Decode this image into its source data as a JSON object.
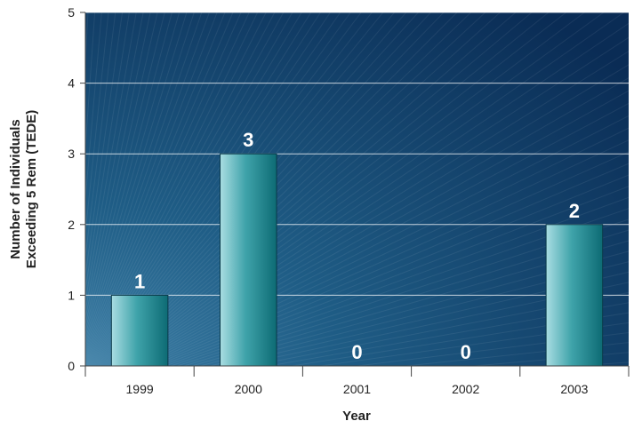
{
  "chart_data": {
    "type": "bar",
    "categories": [
      "1999",
      "2000",
      "2001",
      "2002",
      "2003"
    ],
    "values": [
      1,
      3,
      0,
      0,
      2
    ],
    "data_labels": [
      "1",
      "3",
      "0",
      "0",
      "2"
    ],
    "title": "",
    "xlabel": "Year",
    "ylabel": [
      "Number of Individuals",
      "Exceeding 5 Rem (TEDE)"
    ],
    "ylim": [
      0,
      5
    ],
    "yticks": [
      "0",
      "1",
      "2",
      "3",
      "4",
      "5"
    ],
    "grid": true,
    "legend": "none",
    "colors": {
      "background_light": "#1f5d86",
      "background_dark": "#0a2c55",
      "bar_light": "#a9dde2",
      "bar_mid": "#3fa3aa",
      "bar_dark": "#0d6b74",
      "gridline": "#ffffff",
      "data_label": "#ffffff"
    }
  }
}
